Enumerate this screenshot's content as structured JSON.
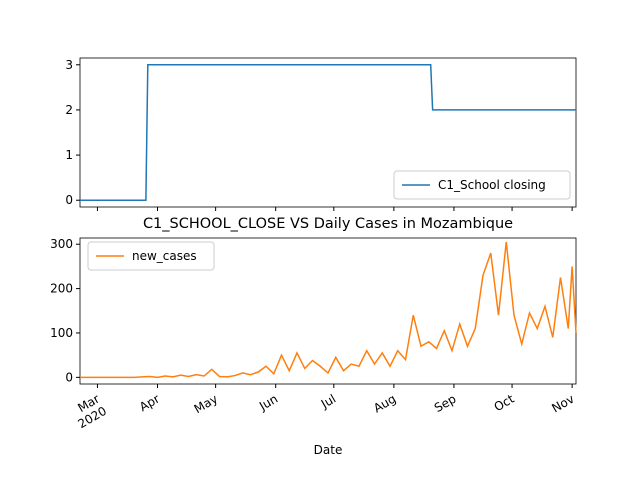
{
  "chart_data": [
    {
      "type": "line",
      "x": [
        "2020-02-21",
        "2020-03-26",
        "2020-03-27",
        "2020-08-20",
        "2020-08-21",
        "2020-11-03"
      ],
      "series": [
        {
          "name": "C1_School closing",
          "color": "#1f77b4",
          "values": [
            0,
            0,
            3,
            3,
            2,
            2
          ]
        }
      ],
      "xlim": [
        "2020-02-21",
        "2020-11-03"
      ],
      "ylim": [
        -0.15,
        3.15
      ],
      "yticks": [
        0,
        1,
        2,
        3
      ],
      "legend": "lower right"
    },
    {
      "type": "line",
      "title": "C1_SCHOOL_CLOSE VS Daily Cases in Mozambique",
      "xlabel": "Date",
      "x": [
        "2020-02-21",
        "2020-02-25",
        "2020-02-29",
        "2020-03-04",
        "2020-03-08",
        "2020-03-12",
        "2020-03-16",
        "2020-03-20",
        "2020-03-24",
        "2020-03-28",
        "2020-04-01",
        "2020-04-05",
        "2020-04-09",
        "2020-04-13",
        "2020-04-17",
        "2020-04-21",
        "2020-04-25",
        "2020-04-29",
        "2020-05-03",
        "2020-05-07",
        "2020-05-11",
        "2020-05-15",
        "2020-05-19",
        "2020-05-23",
        "2020-05-27",
        "2020-05-31",
        "2020-06-04",
        "2020-06-08",
        "2020-06-12",
        "2020-06-16",
        "2020-06-20",
        "2020-06-24",
        "2020-06-28",
        "2020-07-02",
        "2020-07-06",
        "2020-07-10",
        "2020-07-14",
        "2020-07-18",
        "2020-07-22",
        "2020-07-26",
        "2020-07-30",
        "2020-08-03",
        "2020-08-07",
        "2020-08-11",
        "2020-08-15",
        "2020-08-19",
        "2020-08-23",
        "2020-08-27",
        "2020-08-31",
        "2020-09-04",
        "2020-09-08",
        "2020-09-12",
        "2020-09-16",
        "2020-09-20",
        "2020-09-24",
        "2020-09-28",
        "2020-10-02",
        "2020-10-06",
        "2020-10-10",
        "2020-10-14",
        "2020-10-18",
        "2020-10-22",
        "2020-10-26",
        "2020-10-30",
        "2020-11-01",
        "2020-11-03"
      ],
      "series": [
        {
          "name": "new_cases",
          "color": "#ff7f0e",
          "values": [
            0,
            0,
            0,
            0,
            0,
            0,
            0,
            0,
            1,
            2,
            0,
            3,
            1,
            5,
            2,
            6,
            3,
            18,
            2,
            1,
            4,
            10,
            6,
            12,
            25,
            8,
            50,
            15,
            55,
            20,
            38,
            25,
            10,
            45,
            15,
            30,
            25,
            60,
            30,
            55,
            25,
            60,
            40,
            140,
            70,
            80,
            65,
            105,
            60,
            120,
            70,
            110,
            230,
            280,
            140,
            305,
            140,
            75,
            145,
            110,
            160,
            90,
            225,
            110,
            250,
            100
          ]
        }
      ],
      "xlim": [
        "2020-02-21",
        "2020-11-03"
      ],
      "xticks": [
        {
          "value": "2020-03-01",
          "label": "Mar 2020"
        },
        {
          "value": "2020-04-01",
          "label": "Apr"
        },
        {
          "value": "2020-05-01",
          "label": "May"
        },
        {
          "value": "2020-06-01",
          "label": "Jun"
        },
        {
          "value": "2020-07-01",
          "label": "Jul"
        },
        {
          "value": "2020-08-01",
          "label": "Aug"
        },
        {
          "value": "2020-09-01",
          "label": "Sep"
        },
        {
          "value": "2020-10-01",
          "label": "Oct"
        },
        {
          "value": "2020-11-01",
          "label": "Nov"
        }
      ],
      "ylim": [
        -15,
        314
      ],
      "yticks": [
        0,
        100,
        200,
        300
      ],
      "legend": "upper left"
    }
  ]
}
